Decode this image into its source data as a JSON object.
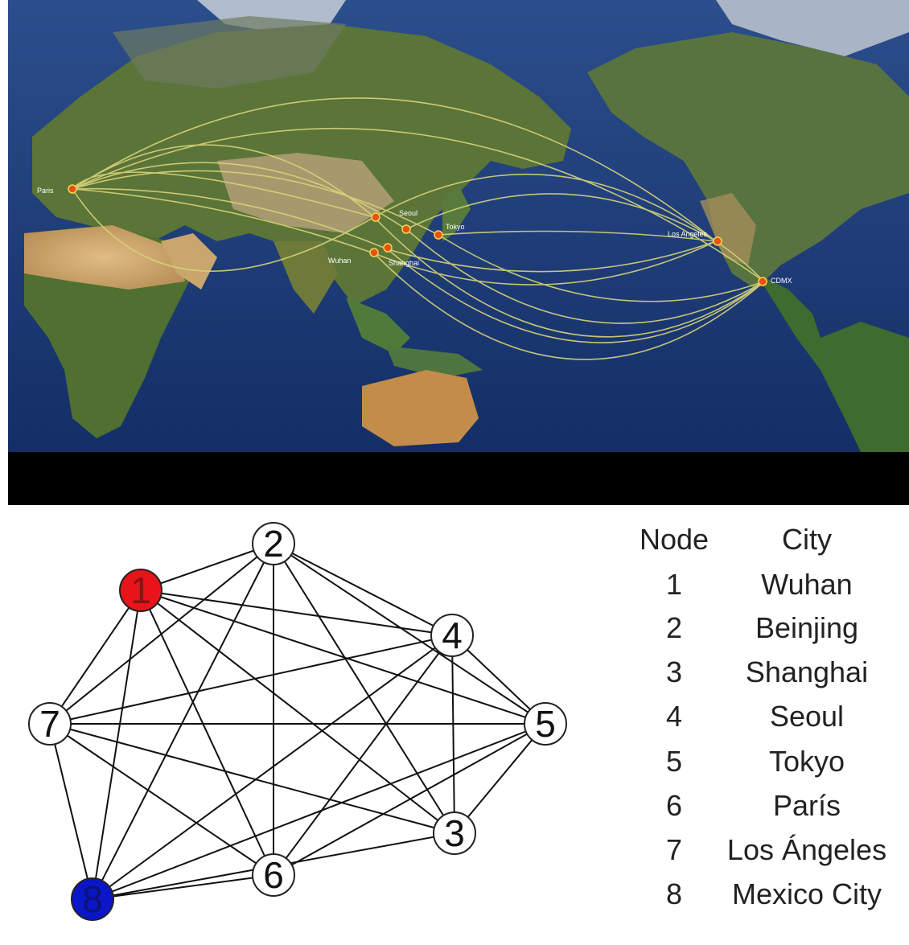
{
  "map": {
    "cities": [
      {
        "id": "paris",
        "label": "Paris"
      },
      {
        "id": "beijing",
        "label": ""
      },
      {
        "id": "seoul",
        "label": "Seoul"
      },
      {
        "id": "tokyo",
        "label": "Tokyo"
      },
      {
        "id": "wuhan",
        "label": "Wuhan"
      },
      {
        "id": "shanghai",
        "label": "Shanghai"
      },
      {
        "id": "los-angeles",
        "label": "Los Angeles"
      },
      {
        "id": "mexico-city",
        "label": "CDMX"
      }
    ]
  },
  "graph": {
    "nodes": [
      {
        "id": "1",
        "label": "1",
        "color": "#e8141a"
      },
      {
        "id": "2",
        "label": "2",
        "color": "#ffffff"
      },
      {
        "id": "3",
        "label": "3",
        "color": "#ffffff"
      },
      {
        "id": "4",
        "label": "4",
        "color": "#ffffff"
      },
      {
        "id": "5",
        "label": "5",
        "color": "#ffffff"
      },
      {
        "id": "6",
        "label": "6",
        "color": "#ffffff"
      },
      {
        "id": "7",
        "label": "7",
        "color": "#ffffff"
      },
      {
        "id": "8",
        "label": "8",
        "color": "#0b16c8"
      }
    ],
    "edges": [
      [
        "1",
        "2"
      ],
      [
        "1",
        "4"
      ],
      [
        "1",
        "5"
      ],
      [
        "1",
        "3"
      ],
      [
        "1",
        "6"
      ],
      [
        "1",
        "7"
      ],
      [
        "1",
        "8"
      ],
      [
        "2",
        "4"
      ],
      [
        "2",
        "5"
      ],
      [
        "2",
        "3"
      ],
      [
        "2",
        "6"
      ],
      [
        "2",
        "7"
      ],
      [
        "2",
        "8"
      ],
      [
        "4",
        "5"
      ],
      [
        "4",
        "3"
      ],
      [
        "4",
        "6"
      ],
      [
        "4",
        "7"
      ],
      [
        "4",
        "8"
      ],
      [
        "5",
        "3"
      ],
      [
        "5",
        "6"
      ],
      [
        "5",
        "7"
      ],
      [
        "5",
        "8"
      ],
      [
        "3",
        "7"
      ],
      [
        "3",
        "8"
      ],
      [
        "6",
        "7"
      ],
      [
        "6",
        "8"
      ],
      [
        "7",
        "8"
      ]
    ]
  },
  "legend": {
    "header": {
      "node": "Node",
      "city": "City"
    },
    "rows": [
      {
        "node": "1",
        "city": "Wuhan"
      },
      {
        "node": "2",
        "city": "Beinjing"
      },
      {
        "node": "3",
        "city": "Shanghai"
      },
      {
        "node": "4",
        "city": "Seoul"
      },
      {
        "node": "5",
        "city": "Tokyo"
      },
      {
        "node": "6",
        "city": "París"
      },
      {
        "node": "7",
        "city": "Los Ángeles"
      },
      {
        "node": "8",
        "city": "Mexico City"
      }
    ]
  },
  "colors": {
    "ocean": "#1d3d7a",
    "land": "#5d7a3c",
    "desert": "#c9a36a",
    "route": "#d8d37a",
    "city_dot": "#e8501a",
    "black_band": "#000000"
  }
}
